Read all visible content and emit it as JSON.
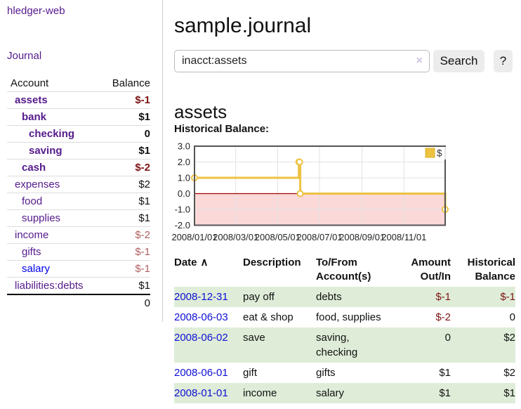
{
  "colors": {
    "accent_purple": "#551a8b",
    "link_blue": "#0000ee",
    "negative_dark_red": "#7d1414",
    "negative_muted_red": "#b06060",
    "row_stripe_green": "#dfedd8",
    "button_gray": "#ececec",
    "chart_line_gold": "#edc240",
    "chart_negative_fill_pink": "#fbd9d9",
    "chart_zero_line_red": "#a40000"
  },
  "app_title": "hledger-web",
  "sidebar": {
    "journal_link": "Journal",
    "account_header": "Account",
    "balance_header": "Balance",
    "accounts": [
      {
        "name": "assets",
        "balance": "$-1"
      },
      {
        "name": "bank",
        "balance": "$1"
      },
      {
        "name": "checking",
        "balance": "0"
      },
      {
        "name": "saving",
        "balance": "$1"
      },
      {
        "name": "cash",
        "balance": "$-2"
      },
      {
        "name": "expenses",
        "balance": "$2"
      },
      {
        "name": "food",
        "balance": "$1"
      },
      {
        "name": "supplies",
        "balance": "$1"
      },
      {
        "name": "income",
        "balance": "$-2"
      },
      {
        "name": "gifts",
        "balance": "$-1"
      },
      {
        "name": "salary",
        "balance": "$-1"
      },
      {
        "name": "liabilities:debts",
        "balance": "$1"
      }
    ],
    "total": "0"
  },
  "main": {
    "title": "sample.journal",
    "search": {
      "value": "inacct:assets",
      "clear_icon": "×",
      "button_label": "Search",
      "help_label": "?"
    },
    "account_heading": "assets",
    "chart_title": "Historical Balance:"
  },
  "chart_data": {
    "type": "line",
    "step": true,
    "title": "Historical Balance",
    "ylim": [
      -2.0,
      3.0
    ],
    "yticks": [
      3.0,
      2.0,
      1.0,
      0.0,
      -1.0,
      -2.0
    ],
    "xticks": [
      {
        "label": "2008/01/01",
        "day": 0
      },
      {
        "label": "2008/03/01",
        "day": 60
      },
      {
        "label": "2008/05/01",
        "day": 121
      },
      {
        "label": "2008/07/01",
        "day": 182
      },
      {
        "label": "2008/09/01",
        "day": 244
      },
      {
        "label": "2008/11/01",
        "day": 305
      }
    ],
    "x_max_day": 365,
    "series": [
      {
        "name": "$",
        "color": "#edc240",
        "points": [
          {
            "date": "2008-01-01",
            "day": 0,
            "value": 1.0
          },
          {
            "date": "2008-06-01",
            "day": 152,
            "value": 2.0
          },
          {
            "date": "2008-06-02",
            "day": 153,
            "value": 2.0
          },
          {
            "date": "2008-06-03",
            "day": 154,
            "value": 0.0
          },
          {
            "date": "2008-12-31",
            "day": 365,
            "value": -1.0
          }
        ]
      }
    ],
    "legend": {
      "label": "$",
      "position": "top-right"
    },
    "grid": true,
    "negative_region": true,
    "negative_fill": "#fbd9d9",
    "zero_line_color": "#a40000",
    "border_color": "#545454",
    "grid_color": "#e2e2e2",
    "tick_label_color": "#222"
  },
  "register": {
    "headers": {
      "date": "Date",
      "description": "Description",
      "account_line1": "To/From",
      "account_line2": "Account(s)",
      "amount_line1": "Amount",
      "amount_line2": "Out/In",
      "balance_line1": "Historical",
      "balance_line2": "Balance"
    },
    "sort_icon": "∧",
    "rows": [
      {
        "date": "2008-12-31",
        "description": "pay off",
        "accounts": "debts",
        "amount": "$-1",
        "balance": "$-1"
      },
      {
        "date": "2008-06-03",
        "description": "eat & shop",
        "accounts": "food, supplies",
        "amount": "$-2",
        "balance": "0"
      },
      {
        "date": "2008-06-02",
        "description": "save",
        "accounts": "saving, checking",
        "amount": "0",
        "balance": "$2"
      },
      {
        "date": "2008-06-01",
        "description": "gift",
        "accounts": "gifts",
        "amount": "$1",
        "balance": "$2"
      },
      {
        "date": "2008-01-01",
        "description": "income",
        "accounts": "salary",
        "amount": "$1",
        "balance": "$1"
      }
    ]
  }
}
